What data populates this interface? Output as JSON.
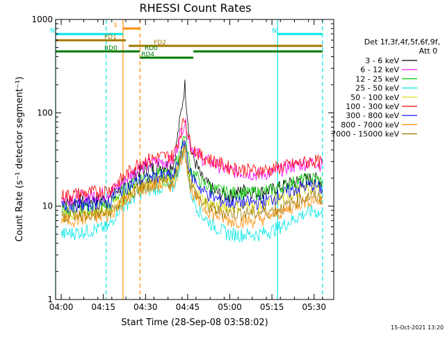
{
  "chart_data": {
    "type": "line",
    "title": "RHESSI Count Rates",
    "xlabel": "Start Time (28-Sep-08 03:58:02)",
    "ylabel": "Count Rate (s⁻¹ detector segment⁻¹)",
    "yscale": "log",
    "ylim": [
      1,
      1000
    ],
    "xlim": [
      "03:58",
      "05:37"
    ],
    "x_tick_labels": [
      "04:00",
      "04:15",
      "04:30",
      "04:45",
      "05:00",
      "05:15",
      "05:30"
    ],
    "y_tick_labels": [
      "1",
      "10",
      "100",
      "1000"
    ],
    "legend_header": [
      "Det 1f,3f,4f,5f,6f,9f,",
      "Att 0"
    ],
    "legend_position": "right",
    "timestamp": "15-Oct-2021 13:20",
    "x": [
      "04:00",
      "04:10",
      "04:17",
      "04:20",
      "04:28",
      "04:35",
      "04:40",
      "04:43",
      "04:44",
      "04:46",
      "04:50",
      "04:55",
      "05:00",
      "05:05",
      "05:10",
      "05:15",
      "05:20",
      "05:25",
      "05:30",
      "05:33"
    ],
    "series": [
      {
        "name": "3 - 6 keV",
        "color": "#000000",
        "values": [
          11,
          11.5,
          12,
          15,
          24,
          27,
          28,
          120,
          200,
          40,
          20,
          14,
          13,
          15,
          14,
          15,
          17,
          19,
          20,
          18
        ]
      },
      {
        "name": "6 - 12 keV",
        "color": "#ff00ff",
        "values": [
          12,
          13,
          14,
          16,
          27,
          30,
          31,
          70,
          80,
          45,
          33,
          28,
          24,
          23,
          22,
          23,
          26,
          28,
          30,
          28
        ]
      },
      {
        "name": "12 - 25 keV",
        "color": "#00c800",
        "values": [
          9,
          9.5,
          10,
          13,
          20,
          22,
          22,
          48,
          60,
          25,
          18,
          15,
          14,
          14,
          14,
          15,
          17,
          19,
          20,
          18
        ]
      },
      {
        "name": "25 - 50 keV",
        "color": "#00e6e6",
        "values": [
          5,
          5.5,
          6,
          9,
          14,
          16,
          16,
          35,
          45,
          14,
          8,
          6,
          5,
          5,
          5,
          5.5,
          6.5,
          8,
          9,
          8
        ]
      },
      {
        "name": "50 - 100 keV",
        "color": "#d7d700",
        "values": [
          8,
          8.5,
          9,
          11,
          17,
          19,
          19,
          40,
          50,
          18,
          12,
          10,
          10,
          10,
          10,
          11,
          13,
          15,
          16,
          14
        ]
      },
      {
        "name": "100 - 300 keV",
        "color": "#ff0000",
        "values": [
          13,
          14,
          15,
          18,
          30,
          34,
          35,
          70,
          90,
          45,
          34,
          30,
          26,
          25,
          24,
          25,
          27,
          29,
          31,
          29
        ]
      },
      {
        "name": "300 - 800 keV",
        "color": "#0000ff",
        "values": [
          10,
          10.5,
          11,
          14,
          19,
          21,
          21,
          40,
          50,
          22,
          15,
          12,
          11,
          11,
          11,
          12,
          14,
          16,
          17,
          15
        ]
      },
      {
        "name": "800 - 7000 keV",
        "color": "#ff8c00",
        "values": [
          7,
          7.5,
          8,
          10,
          15,
          17,
          17,
          35,
          40,
          15,
          10,
          8,
          7,
          7,
          7,
          8,
          9,
          11,
          12,
          11
        ]
      },
      {
        "name": "7000 - 15000 keV",
        "color": "#a07800",
        "values": [
          8,
          8,
          8.5,
          10,
          16,
          18,
          18,
          38,
          44,
          17,
          11,
          9,
          8.5,
          8.5,
          8.5,
          9,
          10,
          12,
          13,
          12
        ]
      }
    ],
    "state_bars": [
      {
        "label": "S",
        "color": "#ff8c00",
        "start": "04:22",
        "end": "04:28"
      },
      {
        "label": "N",
        "color": "#00e6e6",
        "start": "03:58",
        "end": "04:22"
      },
      {
        "label": "N",
        "color": "#00e6e6",
        "start": "05:17",
        "end": "05:33"
      },
      {
        "label": "FD1",
        "color": "#a07800",
        "start": "03:58",
        "end": "04:23"
      },
      {
        "label": "FD2",
        "color": "#a07800",
        "start": "04:24",
        "end": "05:33"
      },
      {
        "label": "RD0",
        "color": "#007800",
        "start": "03:58",
        "end": "04:28"
      },
      {
        "label": "RD4",
        "color": "#007800",
        "start": "04:28",
        "end": "04:47"
      },
      {
        "label": "RD0",
        "color": "#007800",
        "start": "04:47",
        "end": "05:33"
      }
    ],
    "vertical_markers": [
      {
        "color": "#00e6e6",
        "style": "solid",
        "x": "03:58"
      },
      {
        "color": "#00e6e6",
        "style": "dashed",
        "x": "04:16"
      },
      {
        "color": "#ff8c00",
        "style": "solid",
        "x": "04:22"
      },
      {
        "color": "#ff8c00",
        "style": "dashed",
        "x": "04:28"
      },
      {
        "color": "#00e6e6",
        "style": "solid",
        "x": "05:17"
      },
      {
        "color": "#00e6e6",
        "style": "dashed",
        "x": "05:33"
      }
    ]
  }
}
